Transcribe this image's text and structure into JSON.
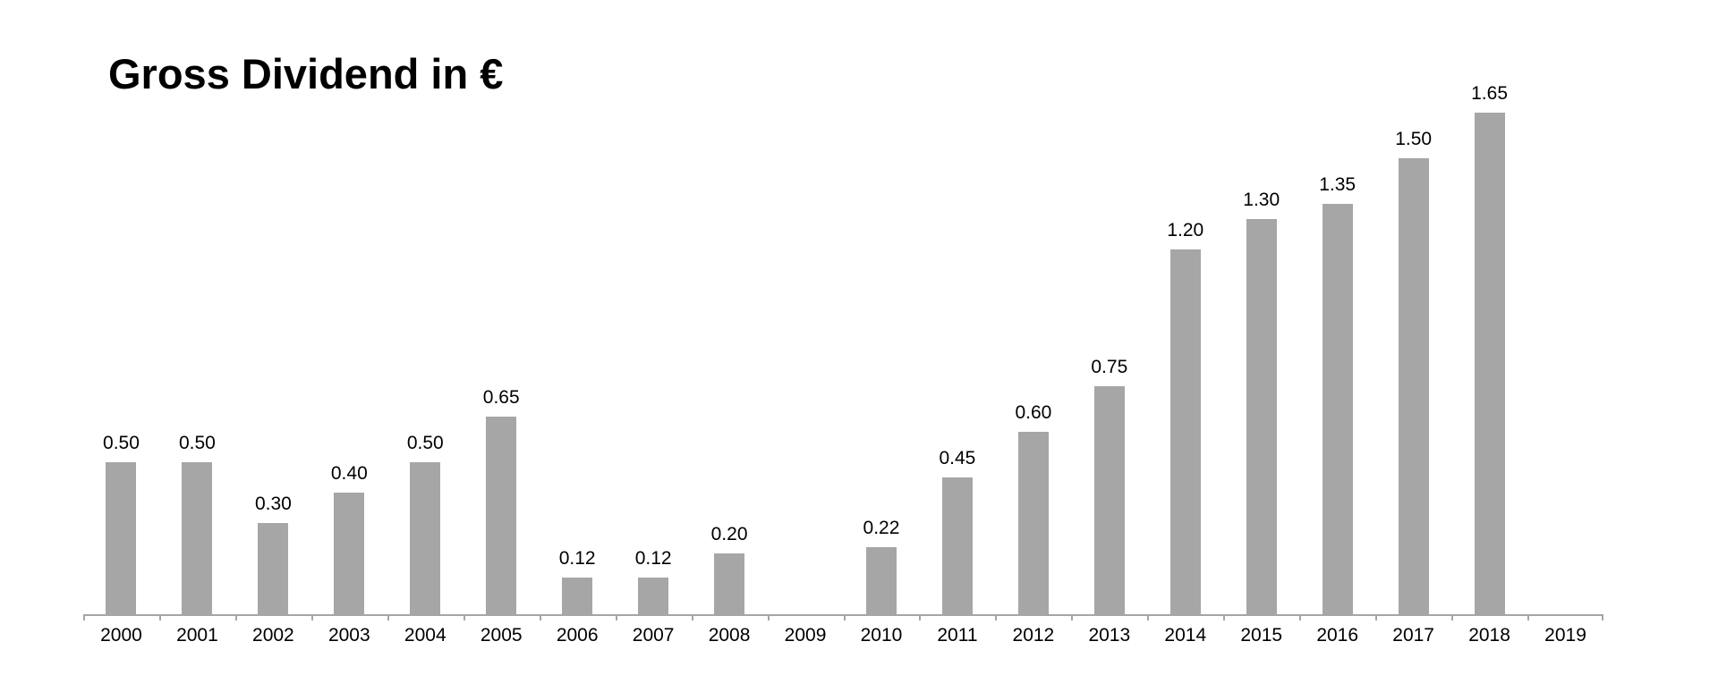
{
  "chart_data": {
    "type": "bar",
    "title": "Gross Dividend in €",
    "categories": [
      "2000",
      "2001",
      "2002",
      "2003",
      "2004",
      "2005",
      "2006",
      "2007",
      "2008",
      "2009",
      "2010",
      "2011",
      "2012",
      "2013",
      "2014",
      "2015",
      "2016",
      "2017",
      "2018",
      "2019"
    ],
    "values": [
      0.5,
      0.5,
      0.3,
      0.4,
      0.5,
      0.65,
      0.12,
      0.12,
      0.2,
      null,
      0.22,
      0.45,
      0.6,
      0.75,
      1.2,
      1.3,
      1.35,
      1.5,
      1.65,
      null
    ],
    "labels": [
      "0.50",
      "0.50",
      "0.30",
      "0.40",
      "0.50",
      "0.65",
      "0.12",
      "0.12",
      "0.20",
      "",
      "0.22",
      "0.45",
      "0.60",
      "0.75",
      "1.20",
      "1.30",
      "1.35",
      "1.50",
      "1.65",
      ""
    ],
    "xlabel": "",
    "ylabel": "",
    "ylim": [
      0,
      1.75
    ],
    "grid": false,
    "legend": false,
    "bar_color": "#a6a6a6",
    "axis_color": "#a6a6a6",
    "text_color": "#000000",
    "background_color": "#ffffff"
  }
}
